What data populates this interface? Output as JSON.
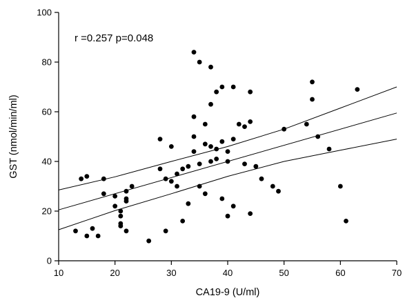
{
  "chart_data": {
    "type": "scatter",
    "title": "",
    "xlabel": "CA19-9 (U/ml)",
    "ylabel": "GST (nmol/min/ml)",
    "annotation": "r =0.257 p=0.048",
    "xlim": [
      10,
      70
    ],
    "ylim": [
      0,
      100
    ],
    "xticks": [
      10,
      20,
      30,
      40,
      50,
      60,
      70
    ],
    "yticks": [
      0,
      20,
      40,
      60,
      80,
      100
    ],
    "grid": false,
    "legend": "none",
    "marker_color": "#000000",
    "line_color": "#000000",
    "points": [
      [
        13,
        12
      ],
      [
        14,
        33
      ],
      [
        15,
        34
      ],
      [
        15,
        10
      ],
      [
        16,
        13
      ],
      [
        17,
        10
      ],
      [
        18,
        33
      ],
      [
        18,
        27
      ],
      [
        20,
        26
      ],
      [
        20,
        22
      ],
      [
        21,
        20
      ],
      [
        21,
        18
      ],
      [
        21,
        15
      ],
      [
        21,
        14
      ],
      [
        22,
        25
      ],
      [
        22,
        28
      ],
      [
        22,
        24
      ],
      [
        22,
        12
      ],
      [
        23,
        30
      ],
      [
        26,
        8
      ],
      [
        28,
        49
      ],
      [
        28,
        37
      ],
      [
        29,
        33
      ],
      [
        29,
        12
      ],
      [
        30,
        32
      ],
      [
        30,
        46
      ],
      [
        31,
        35
      ],
      [
        31,
        30
      ],
      [
        32,
        37
      ],
      [
        32,
        16
      ],
      [
        33,
        38
      ],
      [
        33,
        23
      ],
      [
        34,
        84
      ],
      [
        34,
        58
      ],
      [
        34,
        50
      ],
      [
        34,
        44
      ],
      [
        35,
        80
      ],
      [
        35,
        39
      ],
      [
        35,
        30
      ],
      [
        36,
        55
      ],
      [
        36,
        47
      ],
      [
        36,
        27
      ],
      [
        37,
        78
      ],
      [
        37,
        63
      ],
      [
        37,
        46
      ],
      [
        37,
        40
      ],
      [
        38,
        68
      ],
      [
        38,
        45
      ],
      [
        38,
        41
      ],
      [
        39,
        70
      ],
      [
        39,
        48
      ],
      [
        39,
        25
      ],
      [
        40,
        44
      ],
      [
        40,
        40
      ],
      [
        40,
        18
      ],
      [
        41,
        70
      ],
      [
        41,
        49
      ],
      [
        41,
        22
      ],
      [
        42,
        55
      ],
      [
        43,
        54
      ],
      [
        43,
        39
      ],
      [
        44,
        68
      ],
      [
        44,
        56
      ],
      [
        44,
        19
      ],
      [
        45,
        38
      ],
      [
        46,
        33
      ],
      [
        48,
        30
      ],
      [
        49,
        28
      ],
      [
        50,
        53
      ],
      [
        54,
        55
      ],
      [
        55,
        72
      ],
      [
        55,
        65
      ],
      [
        56,
        50
      ],
      [
        58,
        45
      ],
      [
        60,
        30
      ],
      [
        61,
        16
      ],
      [
        63,
        69
      ]
    ],
    "fit_line": {
      "x": [
        10,
        70
      ],
      "y": [
        20.5,
        59.5
      ]
    },
    "ci_upper": {
      "x": [
        10,
        20,
        30,
        40,
        50,
        60,
        70
      ],
      "y": [
        28.5,
        33.8,
        40,
        46,
        53,
        61.5,
        70
      ]
    },
    "ci_lower": {
      "x": [
        10,
        20,
        30,
        40,
        50,
        60,
        70
      ],
      "y": [
        12.5,
        20.2,
        27,
        34,
        40,
        44.5,
        49
      ]
    }
  }
}
